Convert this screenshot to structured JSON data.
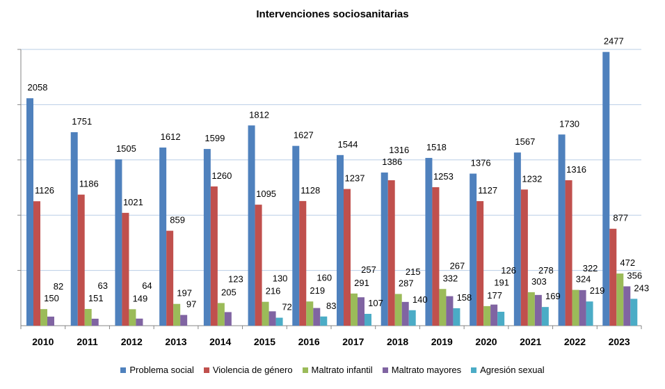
{
  "chart_data": {
    "type": "bar",
    "title": "Intervenciones sociosanitarias",
    "xlabel": "",
    "ylabel": "",
    "ylim": [
      0,
      2500
    ],
    "grid": true,
    "y_tick_step": 500,
    "legend_position": "bottom",
    "categories": [
      "2010",
      "2011",
      "2012",
      "2013",
      "2014",
      "2015",
      "2016",
      "2017",
      "2018",
      "2019",
      "2020",
      "2021",
      "2022",
      "2023"
    ],
    "series": [
      {
        "name": "Problema social",
        "color": "#4F81BD",
        "values": [
          2058,
          1751,
          1505,
          1612,
          1599,
          1812,
          1627,
          1544,
          1386,
          1518,
          1376,
          1567,
          1730,
          2477
        ]
      },
      {
        "name": "Violencia de género",
        "color": "#C0504D",
        "values": [
          1126,
          1186,
          1021,
          859,
          1260,
          1095,
          1128,
          1237,
          1316,
          1253,
          1127,
          1232,
          1316,
          877
        ]
      },
      {
        "name": "Maltrato infantil",
        "color": "#9BBB59",
        "values": [
          150,
          151,
          149,
          197,
          205,
          216,
          219,
          291,
          287,
          332,
          177,
          303,
          324,
          472
        ]
      },
      {
        "name": "Maltrato mayores",
        "color": "#8064A2",
        "values": [
          82,
          63,
          64,
          97,
          123,
          130,
          160,
          257,
          215,
          267,
          191,
          278,
          322,
          356
        ]
      },
      {
        "name": "Agresión sexual",
        "color": "#4BACC6",
        "values": [
          null,
          null,
          null,
          null,
          null,
          72,
          83,
          107,
          140,
          158,
          126,
          169,
          219,
          243
        ]
      }
    ]
  }
}
